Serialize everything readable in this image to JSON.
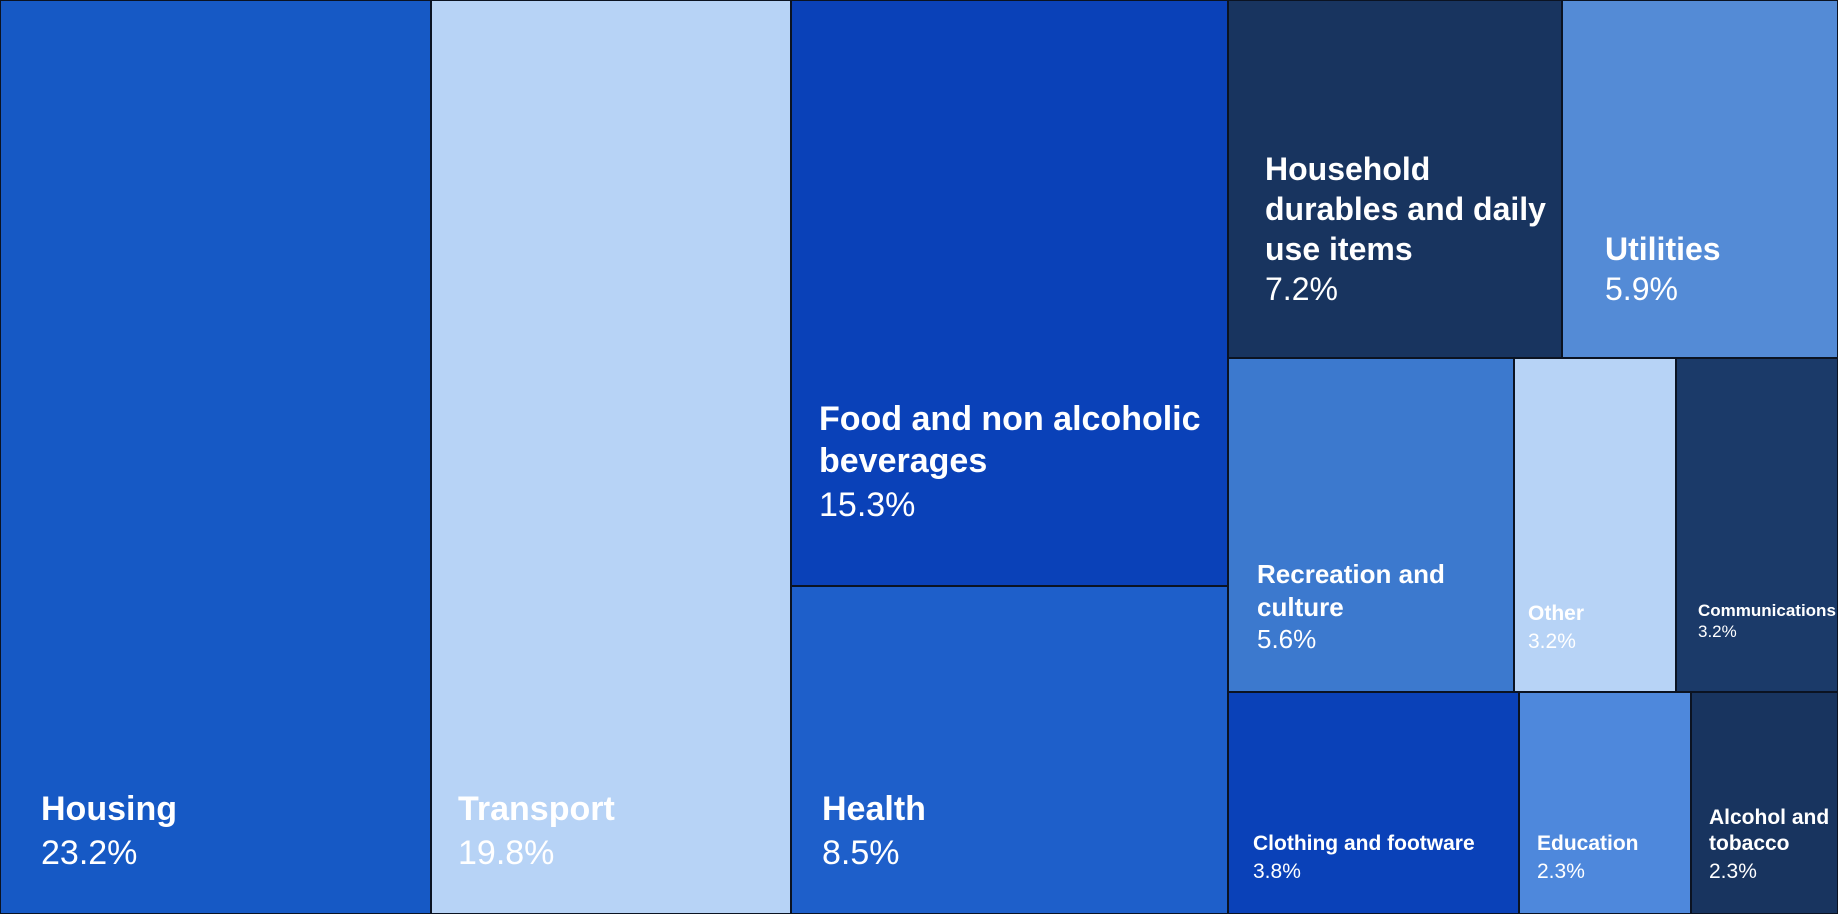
{
  "chart_data": {
    "type": "treemap",
    "title": "",
    "unit": "%",
    "legend": "none",
    "items": [
      {
        "label": "Housing",
        "value": 23.2,
        "value_text": "23.2%",
        "color": "#1659c5"
      },
      {
        "label": "Transport",
        "value": 19.8,
        "value_text": "19.8%",
        "color": "#b7d3f6"
      },
      {
        "label": "Food and non alcoholic beverages",
        "value": 15.3,
        "value_text": "15.3%",
        "color": "#0a41b8"
      },
      {
        "label": "Health",
        "value": 8.5,
        "value_text": "8.5%",
        "color": "#1e5fca"
      },
      {
        "label": "Household durables and daily use items",
        "value": 7.2,
        "value_text": "7.2%",
        "color": "#18345f"
      },
      {
        "label": "Utilities",
        "value": 5.9,
        "value_text": "5.9%",
        "color": "#548bd6"
      },
      {
        "label": "Recreation and culture",
        "value": 5.6,
        "value_text": "5.6%",
        "color": "#3c79ce"
      },
      {
        "label": "Other",
        "value": 3.2,
        "value_text": "3.2%",
        "color": "#b7d3f6"
      },
      {
        "label": "Communications",
        "value": 3.2,
        "value_text": "3.2%",
        "color": "#1b3a69"
      },
      {
        "label": "Clothing and footware",
        "value": 3.8,
        "value_text": "3.8%",
        "color": "#0a41b8"
      },
      {
        "label": "Education",
        "value": 2.3,
        "value_text": "2.3%",
        "color": "#4e88dc"
      },
      {
        "label": "Alcohol and tobacco",
        "value": 2.3,
        "value_text": "2.3%",
        "color": "#18345f"
      }
    ]
  }
}
